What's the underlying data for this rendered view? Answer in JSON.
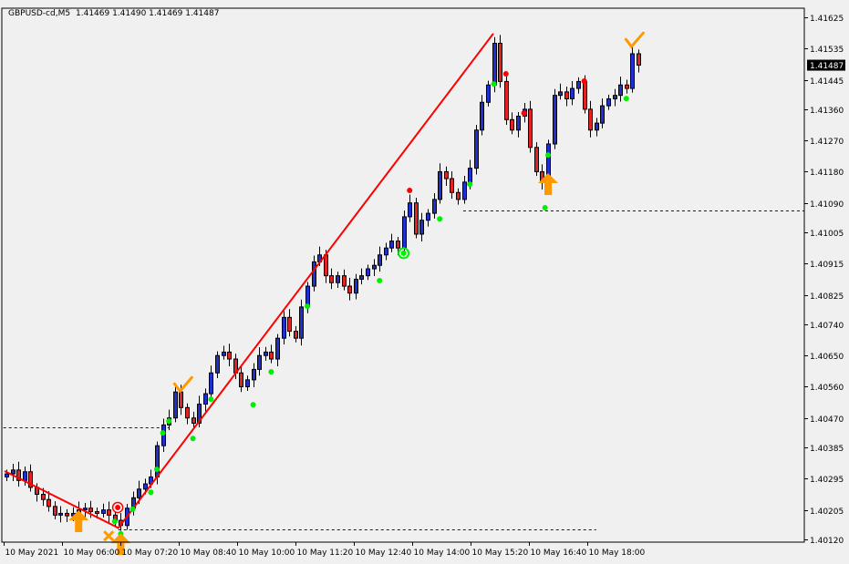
{
  "header": {
    "symbol": "GBPUSD-cd,M5",
    "ohlc": "1.41469 1.41490 1.41469 1.41487"
  },
  "colors": {
    "background": "#f0f0f0",
    "bull_body": "#1f2fd0",
    "bear_body": "#e02424",
    "outline": "#000000",
    "trendline": "#ff0000",
    "level_line": "#0000ff",
    "signal_green": "#00ee00",
    "signal_red": "#ff0000",
    "arrow": "#ff9900",
    "price_label_bg": "#000000"
  },
  "chart_data": {
    "type": "candlestick",
    "timeframe": "M5",
    "ylim": [
      1.4012,
      1.41625
    ],
    "y_ticks": [
      "1.41625",
      "1.41535",
      "1.41445",
      "1.41360",
      "1.41270",
      "1.41180",
      "1.41090",
      "1.41005",
      "1.40915",
      "1.40825",
      "1.40740",
      "1.40650",
      "1.40560",
      "1.40470",
      "1.40385",
      "1.40295",
      "1.40205",
      "1.40120"
    ],
    "x_ticks": [
      "10 May 2021",
      "10 May 06:00",
      "10 May 07:20",
      "10 May 08:40",
      "10 May 10:00",
      "10 May 11:20",
      "10 May 12:40",
      "10 May 14:00",
      "10 May 15:20",
      "10 May 16:40",
      "10 May 18:00"
    ],
    "current_price": "1.41487",
    "first_open": 1.403,
    "closes": [
      1.40309,
      1.4032,
      1.4029,
      1.40315,
      1.4027,
      1.4025,
      1.40235,
      1.40215,
      1.4019,
      1.40195,
      1.40188,
      1.40195,
      1.40205,
      1.4021,
      1.402,
      1.40195,
      1.40205,
      1.4019,
      1.40175,
      1.4016,
      1.4021,
      1.4024,
      1.40265,
      1.4028,
      1.403,
      1.4039,
      1.4045,
      1.4047,
      1.40545,
      1.405,
      1.4047,
      1.40455,
      1.4051,
      1.4054,
      1.406,
      1.4065,
      1.4066,
      1.4064,
      1.406,
      1.4056,
      1.4058,
      1.4061,
      1.4065,
      1.4066,
      1.4064,
      1.407,
      1.4076,
      1.4072,
      1.407,
      1.4079,
      1.4085,
      1.4092,
      1.4094,
      1.4088,
      1.4086,
      1.4088,
      1.4085,
      1.4083,
      1.4087,
      1.4088,
      1.409,
      1.4091,
      1.4094,
      1.4096,
      1.4098,
      1.4096,
      1.4105,
      1.4109,
      1.41,
      1.4104,
      1.4106,
      1.411,
      1.4118,
      1.4116,
      1.4112,
      1.411,
      1.4115,
      1.4119,
      1.413,
      1.4138,
      1.4143,
      1.4155,
      1.4144,
      1.4133,
      1.413,
      1.4134,
      1.4136,
      1.4125,
      1.4118,
      1.4115,
      1.4126,
      1.414,
      1.4141,
      1.4139,
      1.4142,
      1.4144,
      1.4136,
      1.413,
      1.4132,
      1.4137,
      1.4139,
      1.414,
      1.4143,
      1.4142,
      1.4152,
      1.41487
    ],
    "trendline": [
      [
        -0.3,
        1.40317
      ],
      [
        18.6,
        1.40153
      ],
      [
        80.9,
        1.41578
      ]
    ],
    "levels": [
      {
        "from": -0.5,
        "to": 27,
        "price": 1.40443
      },
      {
        "from": 18.6,
        "to": 98,
        "price": 1.40149
      },
      {
        "from": 75.9,
        "to": 140,
        "price": 1.41068
      }
    ],
    "green_dots": [
      [
        18,
        1.40172
      ],
      [
        19,
        1.40136
      ],
      [
        21,
        1.40207
      ],
      [
        24,
        1.40256
      ],
      [
        25,
        1.40322
      ],
      [
        26,
        1.40427
      ],
      [
        27,
        1.40461
      ],
      [
        31,
        1.40411
      ],
      [
        34,
        1.40524
      ],
      [
        41,
        1.40508
      ],
      [
        44,
        1.40603
      ],
      [
        50,
        1.40792
      ],
      [
        62,
        1.40866
      ],
      [
        72,
        1.41044
      ],
      [
        77,
        1.41144
      ],
      [
        81,
        1.41433
      ],
      [
        90,
        1.41228
      ],
      [
        89.5,
        1.41076
      ],
      [
        103,
        1.41391
      ]
    ],
    "red_dots": [
      [
        83,
        1.41462
      ],
      [
        86,
        1.41349
      ],
      [
        96,
        1.41441
      ],
      [
        67,
        1.41126
      ]
    ],
    "green_target": [
      66,
      1.40945
    ],
    "red_target": [
      18.5,
      1.40212
    ],
    "up_arrows": [
      [
        12,
        1.40204
      ],
      [
        90,
        1.41176
      ],
      [
        19,
        1.40138
      ]
    ],
    "checkmarks": [
      [
        29,
        1.40558
      ],
      [
        104,
        1.41551
      ]
    ],
    "cross_marks": [
      [
        17,
        1.4013
      ]
    ]
  }
}
